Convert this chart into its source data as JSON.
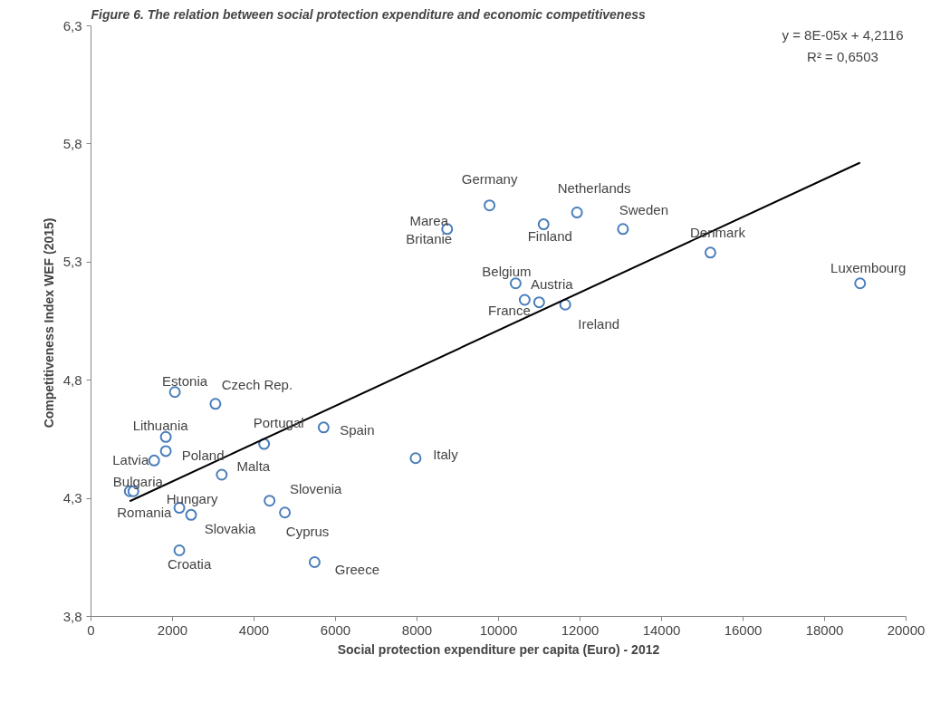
{
  "chart_data": {
    "type": "scatter",
    "title": "Figure 6. The relation between social protection expenditure and economic competitiveness",
    "xlabel": "Social protection expenditure per capita (Euro) - 2012",
    "ylabel": "Competitiveness Index  WEF (2015)",
    "xlim": [
      0,
      20000
    ],
    "xticks": [
      0,
      2000,
      4000,
      6000,
      8000,
      10000,
      12000,
      14000,
      16000,
      18000,
      20000
    ],
    "ylim": [
      3.8,
      6.3
    ],
    "yticks": [
      {
        "value": 3.8,
        "label": "3,8"
      },
      {
        "value": 4.3,
        "label": "4,3"
      },
      {
        "value": 4.8,
        "label": "4,8"
      },
      {
        "value": 5.3,
        "label": "5,3"
      },
      {
        "value": 5.8,
        "label": "5,8"
      },
      {
        "value": 6.3,
        "label": "6,3"
      }
    ],
    "grid": false,
    "marker": "circle",
    "series": [
      {
        "color": "#4a7ebb",
        "x": [
          9779,
          11925,
          11106,
          13053,
          8739,
          15199,
          18872,
          10420,
          10642,
          10996,
          11637,
          2058,
          3053,
          5708,
          4248,
          1836,
          1836,
          1549,
          7965,
          3208,
          951,
          1040,
          4381,
          2168,
          2456,
          4757,
          2168,
          5487
        ],
        "values": [
          5.54,
          5.51,
          5.46,
          5.44,
          5.44,
          5.34,
          5.21,
          5.21,
          5.14,
          5.13,
          5.12,
          4.75,
          4.7,
          4.6,
          4.53,
          4.56,
          4.5,
          4.46,
          4.47,
          4.4,
          4.33,
          4.33,
          4.29,
          4.26,
          4.23,
          4.24,
          4.08,
          4.03
        ]
      },
      {
        "type": "line",
        "marker": "none",
        "color": "#000000",
        "x": [
          951,
          18872
        ],
        "values": [
          4.288,
          5.721
        ]
      }
    ],
    "annotations": [
      {
        "text": "Germany",
        "x": 9779,
        "y": 5.54
      },
      {
        "text": "Netherlands",
        "x": 11925,
        "y": 5.51
      },
      {
        "text": "Finland",
        "x": 11106,
        "y": 5.46
      },
      {
        "text": "Sweden",
        "x": 13053,
        "y": 5.44
      },
      {
        "text": "Marea Britanie",
        "x": 8739,
        "y": 5.44
      },
      {
        "text": "Denmark",
        "x": 15199,
        "y": 5.34
      },
      {
        "text": "Luxembourg",
        "x": 18872,
        "y": 5.21
      },
      {
        "text": "Belgium",
        "x": 10420,
        "y": 5.21
      },
      {
        "text": "France",
        "x": 10642,
        "y": 5.14
      },
      {
        "text": "Austria",
        "x": 10996,
        "y": 5.13
      },
      {
        "text": "Ireland",
        "x": 11637,
        "y": 5.12
      },
      {
        "text": "Estonia",
        "x": 2058,
        "y": 4.75
      },
      {
        "text": "Czech Rep.",
        "x": 3053,
        "y": 4.7
      },
      {
        "text": "Spain",
        "x": 5708,
        "y": 4.6
      },
      {
        "text": "Portugal",
        "x": 4248,
        "y": 4.53
      },
      {
        "text": "Lithuania",
        "x": 1836,
        "y": 4.56
      },
      {
        "text": "Poland",
        "x": 1836,
        "y": 4.5
      },
      {
        "text": "Latvia",
        "x": 1549,
        "y": 4.46
      },
      {
        "text": "Italy",
        "x": 7965,
        "y": 4.47
      },
      {
        "text": "Malta",
        "x": 3208,
        "y": 4.4
      },
      {
        "text": "Bulgaria",
        "x": 951,
        "y": 4.33
      },
      {
        "text": "Romania",
        "x": 1040,
        "y": 4.33
      },
      {
        "text": "Slovenia",
        "x": 4381,
        "y": 4.29
      },
      {
        "text": "Hungary",
        "x": 2168,
        "y": 4.26
      },
      {
        "text": "Slovakia",
        "x": 2456,
        "y": 4.23
      },
      {
        "text": "Cyprus",
        "x": 4757,
        "y": 4.24
      },
      {
        "text": "Croatia",
        "x": 2168,
        "y": 4.08
      },
      {
        "text": "Greece",
        "x": 5487,
        "y": 4.03
      },
      "y = 8E-05x + 4,2116",
      "R² = 0,6503"
    ]
  }
}
